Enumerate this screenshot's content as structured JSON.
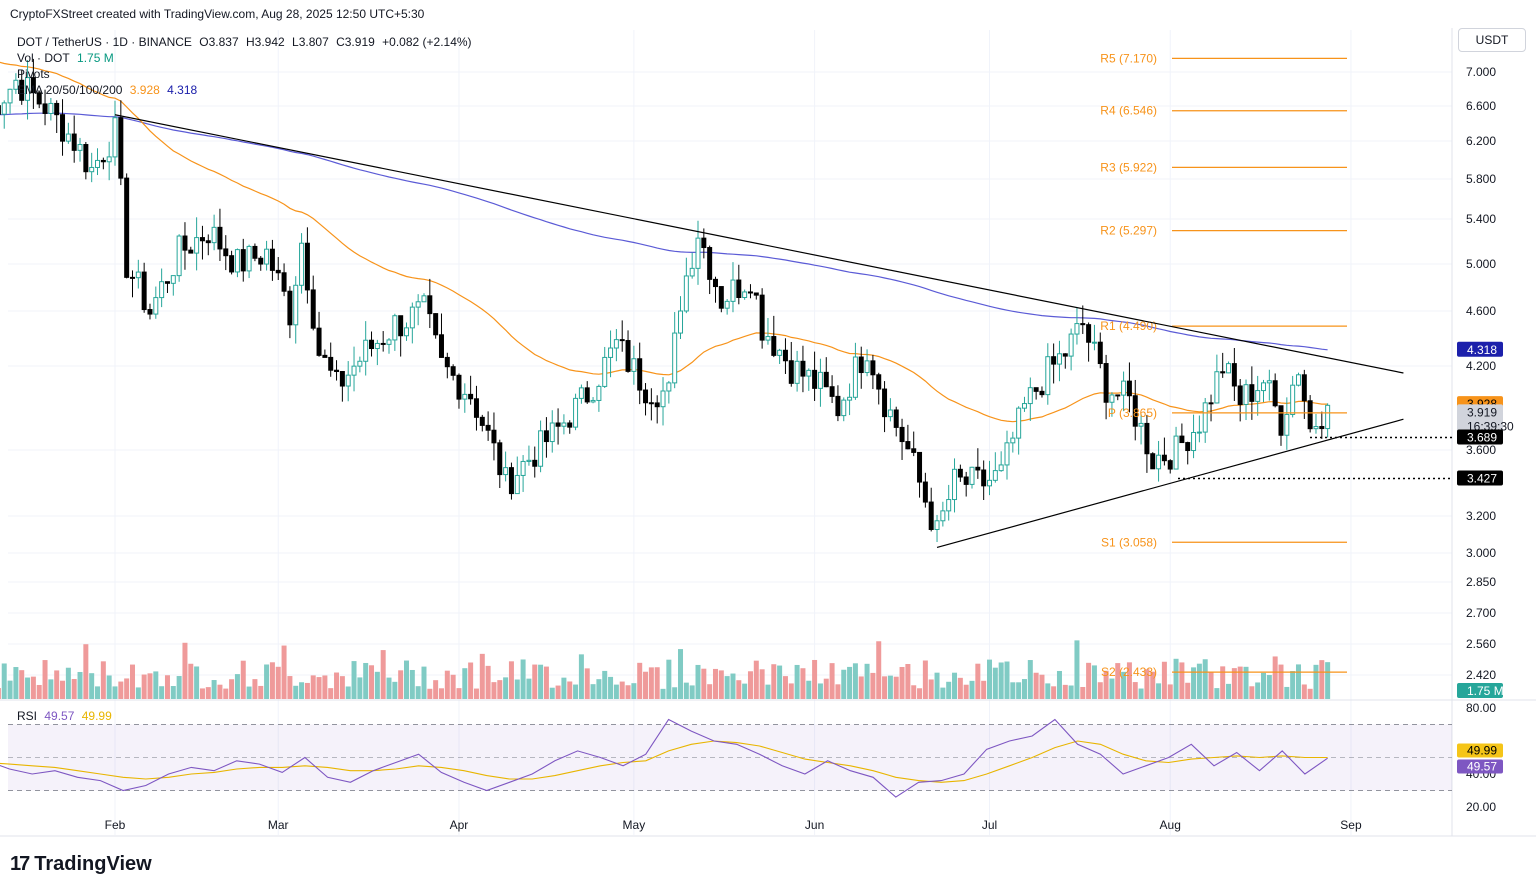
{
  "header": {
    "text": "CryptoFXStreet created with TradingView.com, Aug 28, 2025 12:50 UTC+5:30"
  },
  "legend": {
    "symbol_line": "DOT / TetherUS · 1D · BINANCE",
    "open": "O3.837",
    "high": "H3.942",
    "low": "L3.807",
    "close": "C3.919",
    "change": "+0.082 (+2.14%)",
    "vol_label": "Vol · DOT",
    "vol_value": "1.75 M",
    "pivots_label": "Pivots",
    "ema_label": "EMA 20/50/100/200",
    "ema_50": "3.928",
    "ema_200": "4.318"
  },
  "currency": "USDT",
  "rsi_legend": {
    "label": "RSI",
    "rsi": "49.57",
    "ma": "49.99"
  },
  "brand": {
    "name": "TradingView",
    "mark": "17"
  },
  "colors": {
    "up": "#26a69a",
    "down": "#000000",
    "ema50": "#f7931a",
    "ema200": "#5b5bd6",
    "pivot": "#f7931a",
    "rsi": "#7e57c2",
    "rsi_ma": "#e8b500",
    "vol_up": "#80cbc4",
    "vol_down": "#ef9a9a"
  },
  "chart_data": {
    "type": "candlestick",
    "title": "DOT / TetherUS · 1D · BINANCE",
    "x_ticks": [
      "Feb",
      "Mar",
      "Apr",
      "May",
      "Jun",
      "Jul",
      "Aug",
      "Sep"
    ],
    "y_ticks": [
      "7.000",
      "6.600",
      "6.200",
      "5.800",
      "5.400",
      "5.000",
      "4.600",
      "4.200",
      "3.600",
      "3.200",
      "3.000",
      "2.850",
      "2.700",
      "2.560",
      "2.420"
    ],
    "price_series": [
      [
        "Jan 10",
        6.5
      ],
      [
        "Jan 15",
        6.9
      ],
      [
        "Jan 20",
        6.6
      ],
      [
        "Jan 25",
        6.2
      ],
      [
        "Jan 28",
        5.9
      ],
      [
        "Feb 1",
        6.3
      ],
      [
        "Feb 3",
        5.0
      ],
      [
        "Feb 7",
        4.6
      ],
      [
        "Feb 12",
        5.1
      ],
      [
        "Feb 17",
        5.3
      ],
      [
        "Feb 22",
        5.0
      ],
      [
        "Feb 27",
        5.1
      ],
      [
        "Mar 3",
        4.6
      ],
      [
        "Mar 5",
        5.2
      ],
      [
        "Mar 8",
        4.3
      ],
      [
        "Mar 11",
        4.05
      ],
      [
        "Mar 16",
        4.3
      ],
      [
        "Mar 21",
        4.5
      ],
      [
        "Mar 26",
        4.6
      ],
      [
        "Mar 29",
        4.2
      ],
      [
        "Apr 3",
        4.0
      ],
      [
        "Apr 7",
        3.6
      ],
      [
        "Apr 9",
        3.4
      ],
      [
        "Apr 13",
        3.55
      ],
      [
        "Apr 18",
        3.75
      ],
      [
        "Apr 23",
        4.0
      ],
      [
        "Apr 28",
        4.35
      ],
      [
        "May 3",
        4.05
      ],
      [
        "May 7",
        4.0
      ],
      [
        "May 9",
        4.7
      ],
      [
        "May 12",
        5.3
      ],
      [
        "May 16",
        4.7
      ],
      [
        "May 21",
        4.9
      ],
      [
        "May 23",
        4.5
      ],
      [
        "May 28",
        4.2
      ],
      [
        "Jun 2",
        4.05
      ],
      [
        "Jun 5",
        3.9
      ],
      [
        "Jun 10",
        4.35
      ],
      [
        "Jun 13",
        3.95
      ],
      [
        "Jun 17",
        3.6
      ],
      [
        "Jun 22",
        3.1
      ],
      [
        "Jun 25",
        3.4
      ],
      [
        "Jun 30",
        3.4
      ],
      [
        "Jul 3",
        3.45
      ],
      [
        "Jul 7",
        3.9
      ],
      [
        "Jul 10",
        4.1
      ],
      [
        "Jul 14",
        4.3
      ],
      [
        "Jul 17",
        4.5
      ],
      [
        "Jul 21",
        4.05
      ],
      [
        "Jul 25",
        3.95
      ],
      [
        "Jul 29",
        3.55
      ],
      [
        "Aug 2",
        3.6
      ],
      [
        "Aug 6",
        3.8
      ],
      [
        "Aug 10",
        4.2
      ],
      [
        "Aug 13",
        3.95
      ],
      [
        "Aug 17",
        4.1
      ],
      [
        "Aug 20",
        3.8
      ],
      [
        "Aug 23",
        4.2
      ],
      [
        "Aug 25",
        3.75
      ],
      [
        "Aug 28",
        3.919
      ]
    ],
    "ema_50": {
      "name": "EMA 50",
      "last": 3.928
    },
    "ema_200": {
      "name": "EMA 200",
      "last": 4.318
    },
    "pivots": [
      {
        "name": "R5",
        "value": 7.17,
        "label": "R5 (7.170)"
      },
      {
        "name": "R4",
        "value": 6.546,
        "label": "R4 (6.546)"
      },
      {
        "name": "R3",
        "value": 5.922,
        "label": "R3 (5.922)"
      },
      {
        "name": "R2",
        "value": 5.297,
        "label": "R2 (5.297)"
      },
      {
        "name": "R1",
        "value": 4.49,
        "label": "R1 (4.490)"
      },
      {
        "name": "P",
        "value": 3.865,
        "label": "P (3.865)"
      },
      {
        "name": "S1",
        "value": 3.058,
        "label": "S1 (3.058)"
      },
      {
        "name": "S2",
        "value": 2.433,
        "label": "S2 (2.433)"
      }
    ],
    "price_tags": [
      {
        "name": "ema-50-tag",
        "value": 3.928,
        "text": "3.928"
      },
      {
        "name": "ema-200-tag",
        "value": 4.318,
        "text": "4.318"
      },
      {
        "name": "last-price-tag",
        "value": 3.919,
        "text": "3.919",
        "countdown": "16:39:30"
      },
      {
        "name": "support-3689-tag",
        "value": 3.689,
        "text": "3.689"
      },
      {
        "name": "support-3427-tag",
        "value": 3.427,
        "text": "3.427"
      },
      {
        "name": "volume-tag",
        "value": 1.75,
        "text": "1.75 M"
      }
    ],
    "trendlines": [
      {
        "name": "descending-resistance",
        "from": [
          "Feb 1",
          6.5
        ],
        "to": [
          "Sep 10",
          4.15
        ]
      },
      {
        "name": "ascending-support",
        "from": [
          "Jun 22",
          3.03
        ],
        "to": [
          "Sep 10",
          3.82
        ]
      }
    ],
    "rsi": {
      "y_ticks": [
        "80.00",
        "40.00",
        "20.00"
      ],
      "upper_band": 70,
      "lower_band": 30,
      "last": 49.57,
      "ma_last": 49.99,
      "series": [
        48,
        43,
        40,
        42,
        38,
        36,
        30,
        33,
        40,
        44,
        42,
        48,
        46,
        41,
        50,
        38,
        35,
        42,
        47,
        52,
        41,
        35,
        30,
        35,
        40,
        48,
        54,
        50,
        45,
        52,
        73,
        66,
        60,
        58,
        52,
        45,
        40,
        48,
        42,
        38,
        26,
        35,
        36,
        40,
        55,
        60,
        63,
        73,
        58,
        52,
        40,
        45,
        50,
        58,
        45,
        53,
        42,
        54,
        40,
        49.57
      ],
      "ma_series": [
        47,
        46,
        45,
        44,
        42,
        40,
        38,
        37,
        38,
        40,
        41,
        43,
        44,
        44,
        45,
        44,
        42,
        42,
        43,
        45,
        44,
        42,
        39,
        37,
        37,
        39,
        42,
        45,
        47,
        48,
        54,
        58,
        60,
        59,
        57,
        53,
        49,
        47,
        45,
        42,
        38,
        36,
        35,
        36,
        40,
        45,
        50,
        56,
        60,
        58,
        52,
        48,
        47,
        49,
        50,
        51,
        50,
        51,
        50,
        49.99
      ]
    }
  }
}
